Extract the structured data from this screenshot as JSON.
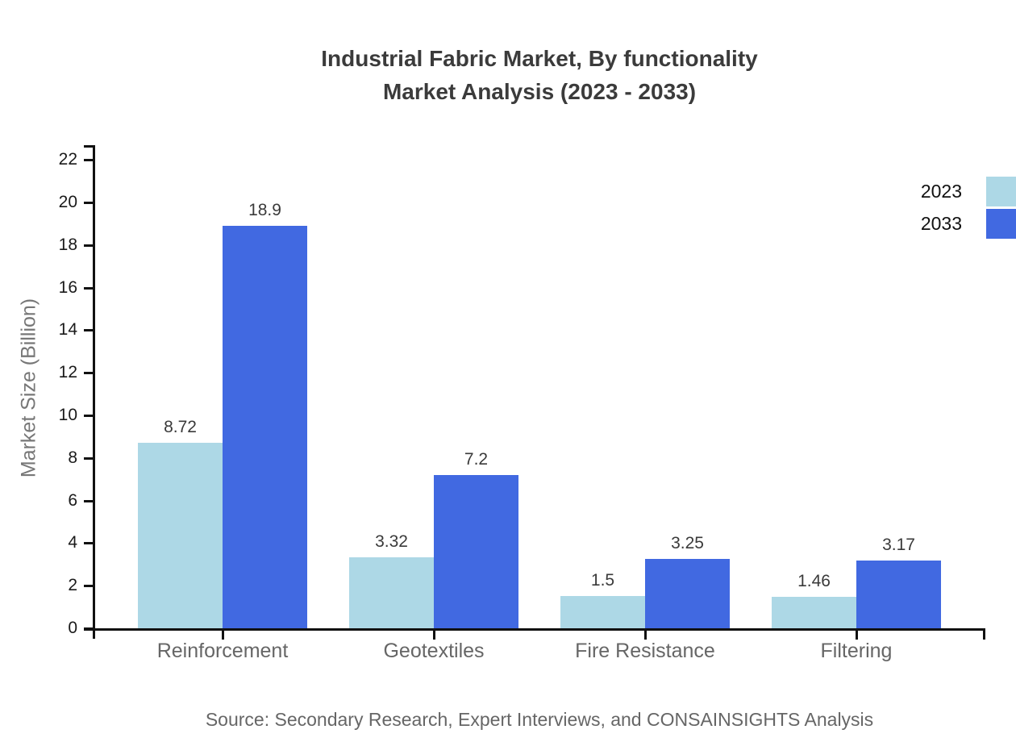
{
  "title": {
    "line1": "Industrial Fabric Market, By functionality",
    "line2": "Market Analysis (2023 - 2033)"
  },
  "source": "Source: Secondary Research, Expert Interviews, and CONSAINSIGHTS Analysis",
  "chart_data": {
    "type": "bar",
    "title": "Industrial Fabric Market, By functionality Market Analysis (2023 - 2033)",
    "categories": [
      "Reinforcement",
      "Geotextiles",
      "Fire Resistance",
      "Filtering"
    ],
    "series": [
      {
        "name": "2023",
        "color": "#ADD8E6",
        "values": [
          8.72,
          3.32,
          1.5,
          1.46
        ]
      },
      {
        "name": "2033",
        "color": "#4169E1",
        "values": [
          18.9,
          7.2,
          3.25,
          3.17
        ]
      }
    ],
    "xlabel": "",
    "ylabel": "Market Size (Billion)",
    "ylim": [
      0,
      22
    ],
    "ytick_step": 2,
    "grid": false,
    "legend_position": "top-right",
    "data_labels": true
  },
  "colors": {
    "axis": "#111111",
    "title_text": "#3b3b3b",
    "tick_label": "#1a1a1a",
    "category_label": "#666666",
    "series_2023": "#ADD8E6",
    "series_2033": "#4169E1"
  }
}
